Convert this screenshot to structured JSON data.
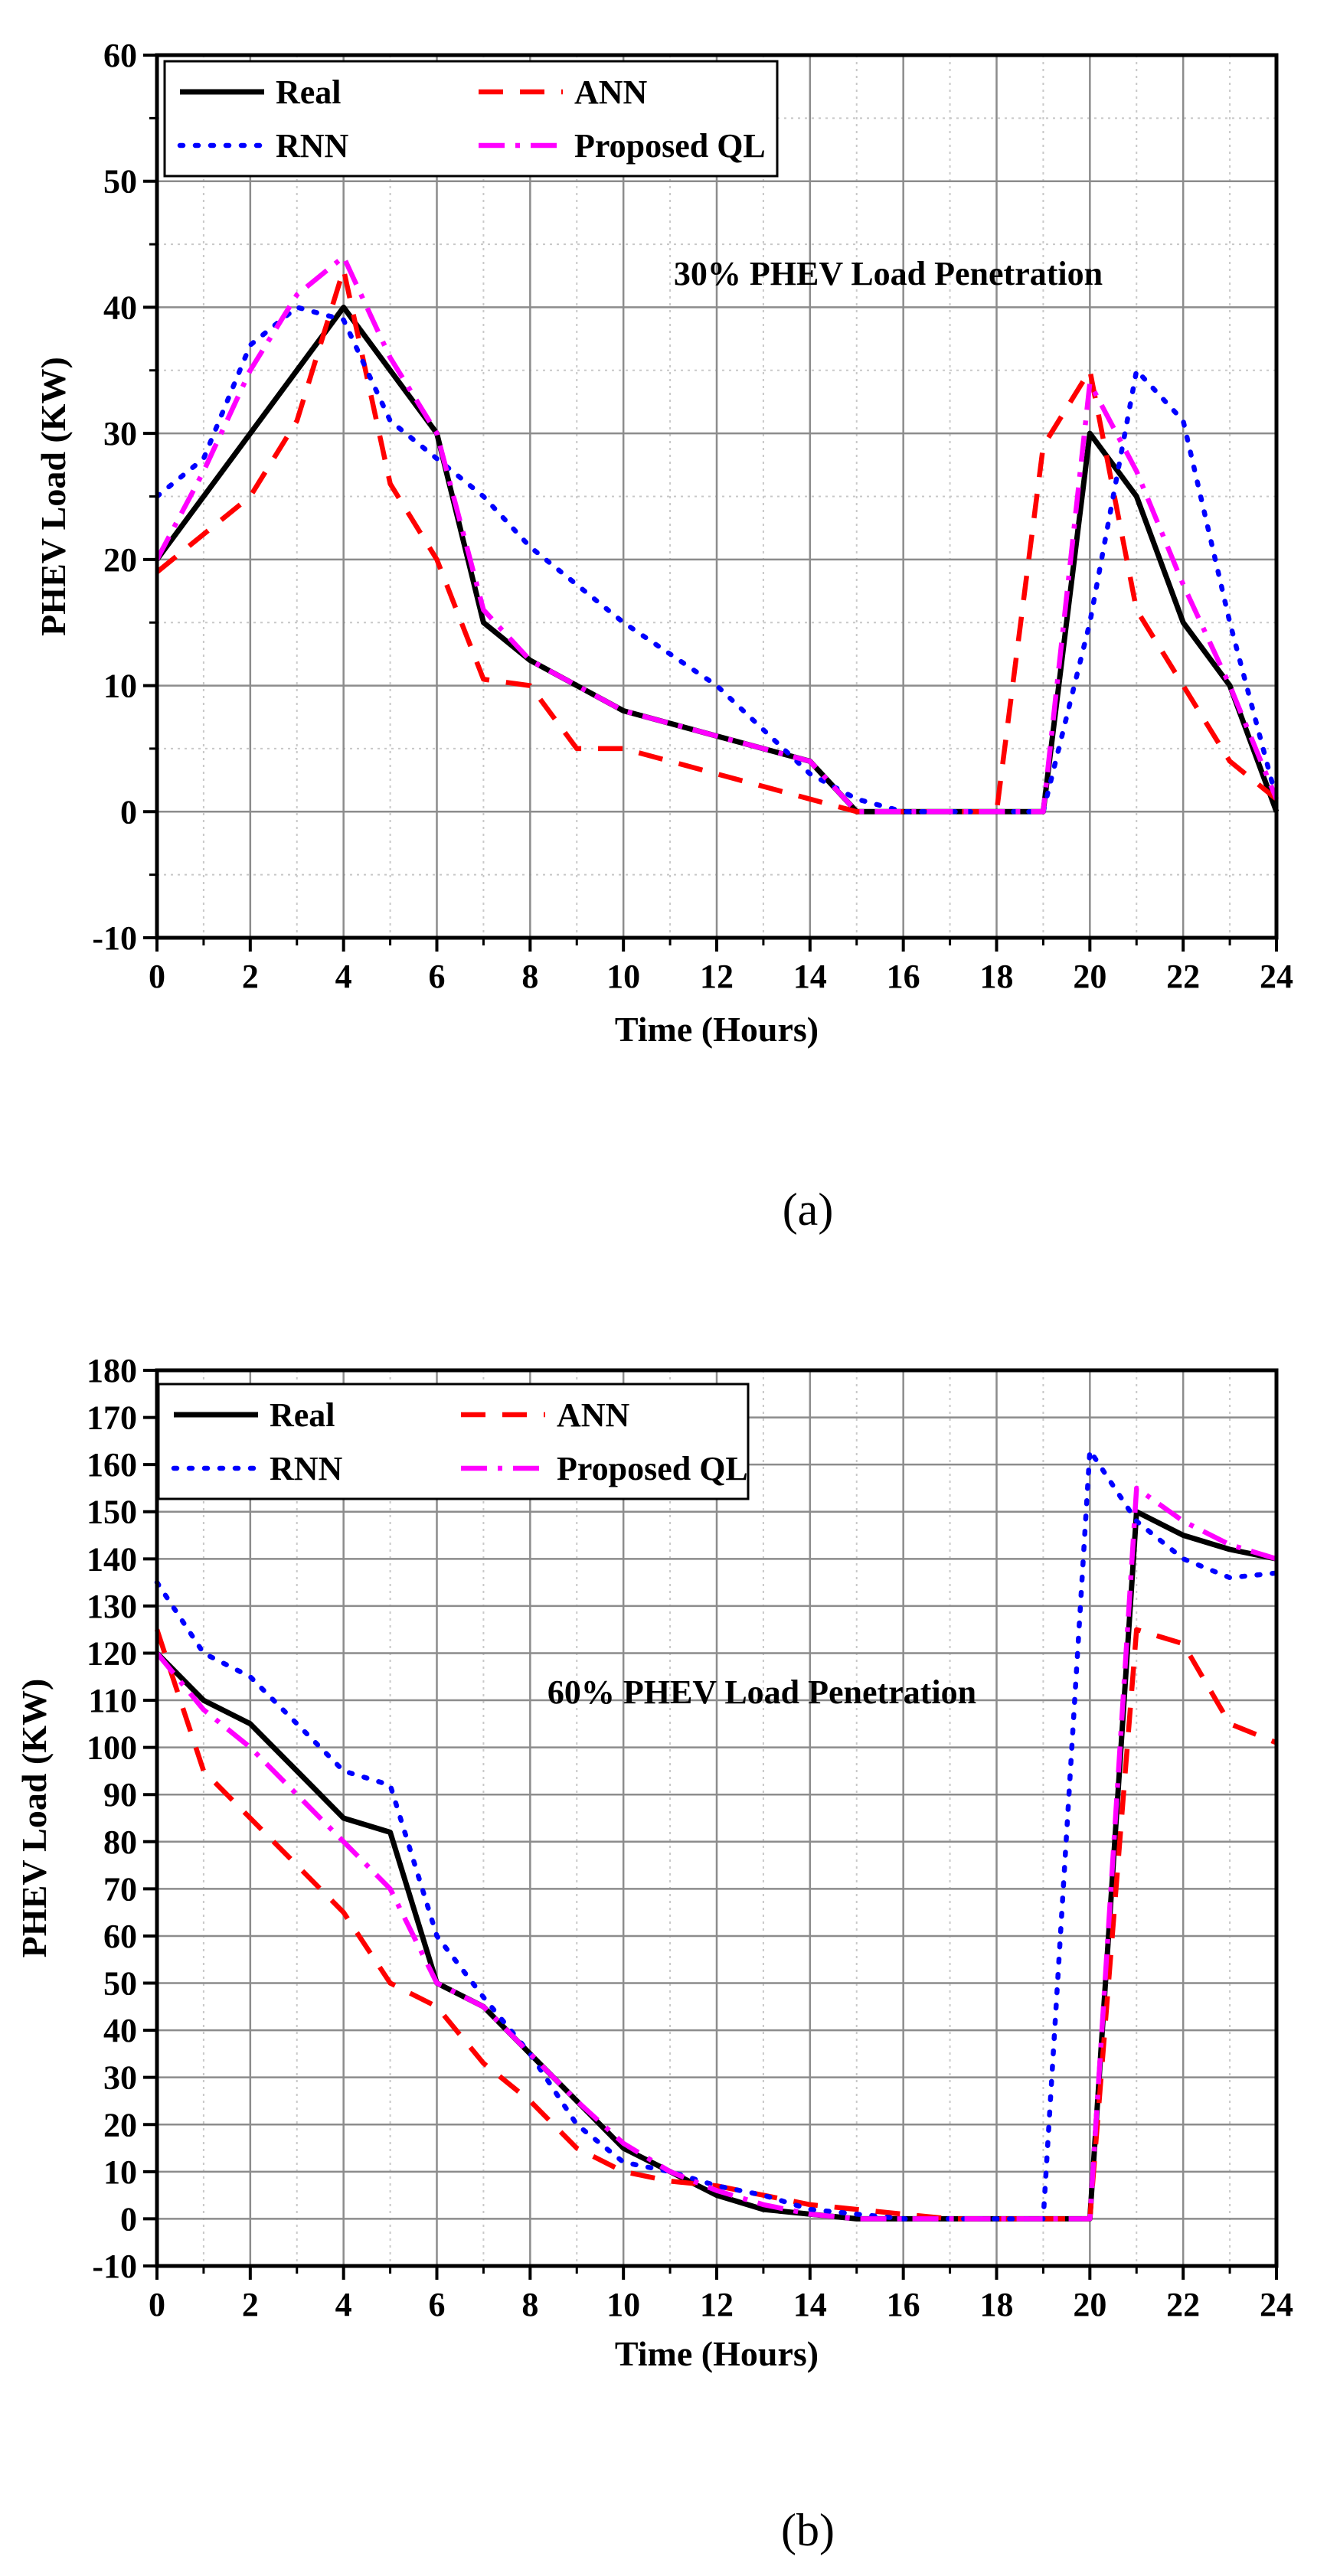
{
  "chart_data": [
    {
      "type": "line",
      "panel": "(a)",
      "caption": "(a)",
      "annotation": "30% PHEV Load Penetration",
      "xlabel": "Time (Hours)",
      "ylabel": "PHEV Load (KW)",
      "xlim": [
        0,
        24
      ],
      "ylim": [
        -10,
        60
      ],
      "x_ticks": [
        0,
        2,
        4,
        6,
        8,
        10,
        12,
        14,
        16,
        18,
        20,
        22,
        24
      ],
      "y_ticks": [
        -10,
        0,
        10,
        20,
        30,
        40,
        50,
        60
      ],
      "grid": true,
      "legend_position": "top-left",
      "series": [
        {
          "name": "Real",
          "color": "#000000",
          "style": "solid",
          "x": [
            0,
            4,
            6,
            7,
            8,
            10,
            12,
            14,
            15,
            16,
            17,
            18,
            19,
            20,
            21,
            22,
            23,
            24
          ],
          "y": [
            20,
            40,
            30,
            15,
            12,
            8,
            6,
            4,
            0,
            0,
            0,
            0,
            0,
            30,
            25,
            15,
            10,
            0
          ]
        },
        {
          "name": "ANN",
          "color": "#ff0000",
          "style": "dashed",
          "x": [
            0,
            1,
            2,
            3,
            4,
            5,
            6,
            7,
            8,
            9,
            10,
            12,
            14,
            15,
            16,
            17,
            18,
            19,
            20,
            21,
            22,
            23,
            24
          ],
          "y": [
            19,
            22,
            25,
            31,
            43,
            26,
            20,
            10.5,
            10,
            5,
            5,
            3,
            1,
            0,
            0,
            0,
            0,
            29,
            35,
            16,
            10,
            4,
            1
          ]
        },
        {
          "name": "RNN",
          "color": "#0000ff",
          "style": "dotted",
          "x": [
            0,
            1,
            2,
            3,
            4,
            5,
            6,
            7,
            8,
            10,
            12,
            14,
            15,
            16,
            17,
            18,
            19,
            20,
            21,
            22,
            23,
            24
          ],
          "y": [
            25,
            28,
            37,
            40,
            39,
            31,
            28,
            25,
            21,
            15,
            10,
            3,
            1,
            0,
            0,
            0,
            0,
            15,
            35,
            31,
            15,
            1
          ]
        },
        {
          "name": "Proposed QL",
          "color": "#ff00ff",
          "style": "dashdot",
          "x": [
            0,
            1,
            2,
            3,
            4,
            5,
            6,
            7,
            8,
            10,
            12,
            14,
            15,
            16,
            17,
            18,
            19,
            20,
            21,
            22,
            23,
            24
          ],
          "y": [
            20,
            27,
            35,
            41,
            44,
            36,
            30,
            16,
            12,
            8,
            6,
            4,
            0,
            0,
            0,
            0,
            0,
            34,
            27,
            18,
            10,
            1
          ]
        }
      ]
    },
    {
      "type": "line",
      "panel": "(b)",
      "caption": "(b)",
      "annotation": "60% PHEV Load Penetration",
      "xlabel": "Time (Hours)",
      "ylabel": "PHEV Load (KW)",
      "xlim": [
        0,
        24
      ],
      "ylim": [
        -10,
        180
      ],
      "x_ticks": [
        0,
        2,
        4,
        6,
        8,
        10,
        12,
        14,
        16,
        18,
        20,
        22,
        24
      ],
      "y_ticks": [
        -10,
        0,
        10,
        20,
        30,
        40,
        50,
        60,
        70,
        80,
        90,
        100,
        110,
        120,
        130,
        140,
        150,
        160,
        170,
        180
      ],
      "grid": true,
      "legend_position": "top-left",
      "series": [
        {
          "name": "Real",
          "color": "#000000",
          "style": "solid",
          "x": [
            0,
            1,
            2,
            3,
            4,
            5,
            6,
            7,
            8,
            9,
            10,
            11,
            12,
            13,
            14,
            15,
            16,
            17,
            18,
            19,
            20,
            21,
            22,
            23,
            24
          ],
          "y": [
            120,
            110,
            105,
            95,
            85,
            82,
            50,
            45,
            35,
            25,
            15,
            10,
            5,
            2,
            1,
            0,
            0,
            0,
            0,
            0,
            0,
            150,
            145,
            142,
            140
          ]
        },
        {
          "name": "ANN",
          "color": "#ff0000",
          "style": "dashed",
          "x": [
            0,
            1,
            2,
            3,
            4,
            5,
            6,
            7,
            8,
            9,
            10,
            11,
            12,
            13,
            14,
            15,
            16,
            17,
            18,
            19,
            20,
            21,
            22,
            23,
            24
          ],
          "y": [
            125,
            95,
            85,
            75,
            65,
            50,
            45,
            33,
            25,
            15,
            10,
            8,
            7,
            5,
            3,
            2,
            1,
            0,
            0,
            0,
            0,
            125,
            122,
            105,
            101
          ]
        },
        {
          "name": "RNN",
          "color": "#0000ff",
          "style": "dotted",
          "x": [
            0,
            1,
            2,
            3,
            4,
            5,
            6,
            7,
            8,
            9,
            10,
            11,
            12,
            13,
            14,
            15,
            16,
            17,
            18,
            19,
            20,
            21,
            22,
            23,
            24
          ],
          "y": [
            135,
            120,
            115,
            105,
            95,
            92,
            60,
            47,
            35,
            20,
            12,
            10,
            7,
            5,
            2,
            1,
            0,
            0,
            0,
            0,
            163,
            148,
            140,
            136,
            137
          ]
        },
        {
          "name": "Proposed QL",
          "color": "#ff00ff",
          "style": "dashdot",
          "x": [
            0,
            1,
            2,
            3,
            4,
            5,
            6,
            7,
            8,
            9,
            10,
            11,
            12,
            13,
            14,
            15,
            16,
            17,
            18,
            19,
            20,
            21,
            22,
            23,
            24
          ],
          "y": [
            120,
            108,
            100,
            90,
            80,
            70,
            50,
            45,
            35,
            25,
            16,
            10,
            6,
            3,
            1,
            0,
            0,
            0,
            0,
            0,
            0,
            155,
            148,
            143,
            140
          ]
        }
      ]
    }
  ]
}
